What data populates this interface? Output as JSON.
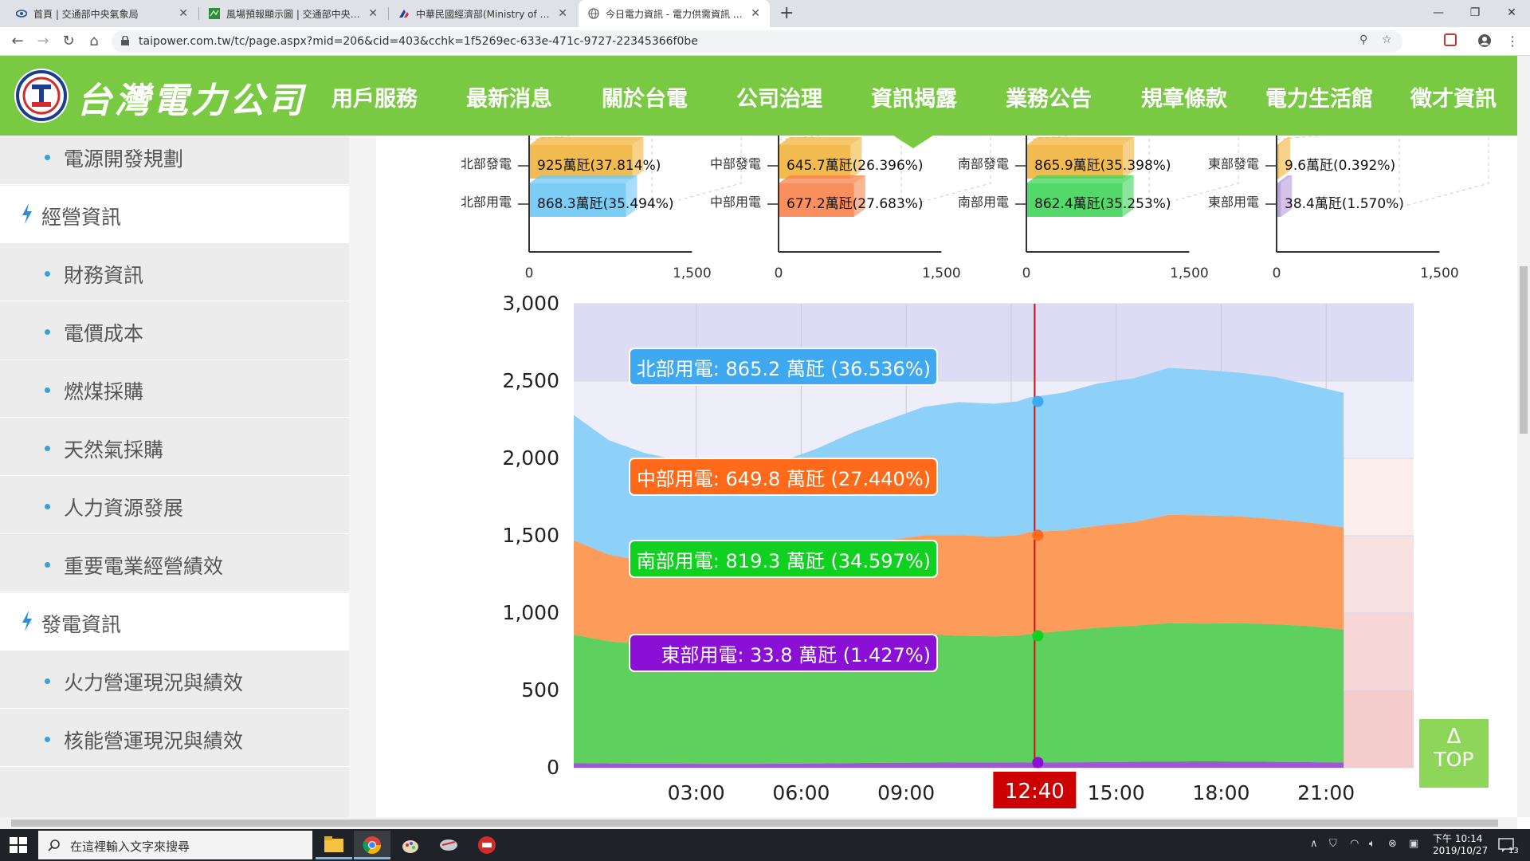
{
  "browser": {
    "tabs": [
      {
        "title": "首頁 | 交通部中央氣象局",
        "close": "✕"
      },
      {
        "title": "風場預報顯示圖 | 交通部中央氣象",
        "close": "✕"
      },
      {
        "title": "中華民國經濟部(Ministry of Eco",
        "close": "✕"
      },
      {
        "title": "今日電力資訊 - 電力供需資訊 - 資",
        "close": "✕"
      }
    ],
    "new_tab": "+",
    "url": "taipower.com.tw/tc/page.aspx?mid=206&cid=403&cchk=1f5269ec-633e-471c-9727-22345366f0be",
    "window_controls": [
      "—",
      "❐",
      "✕"
    ]
  },
  "site": {
    "logo_text": "台灣電力公司",
    "nav": [
      "用戶服務",
      "最新消息",
      "關於台電",
      "公司治理",
      "資訊揭露",
      "業務公告",
      "規章條款",
      "電力生活館",
      "徵才資訊"
    ],
    "active_nav": "資訊揭露"
  },
  "sidebar": {
    "items": [
      {
        "label": "電源開發規劃",
        "type": "sub"
      },
      {
        "label": "經營資訊",
        "type": "cat"
      },
      {
        "label": "財務資訊",
        "type": "sub"
      },
      {
        "label": "電價成本",
        "type": "sub"
      },
      {
        "label": "燃煤採購",
        "type": "sub"
      },
      {
        "label": "天然氣採購",
        "type": "sub"
      },
      {
        "label": "人力資源發展",
        "type": "sub"
      },
      {
        "label": "重要電業經營績效",
        "type": "sub"
      },
      {
        "label": "發電資訊",
        "type": "cat"
      },
      {
        "label": "火力營運現況與績效",
        "type": "sub"
      },
      {
        "label": "核能營運現況與績效",
        "type": "sub"
      }
    ]
  },
  "chart_data": [
    {
      "type": "bar",
      "orientation": "horizontal",
      "region_charts": [
        {
          "bars": [
            {
              "label": "北部發電",
              "value": 925,
              "text": "925萬瓩(37.814%)",
              "color": "#f0b43c"
            },
            {
              "label": "北部用電",
              "value": 868.3,
              "text": "868.3萬瓩(35.494%)",
              "color": "#6ec8f5"
            }
          ],
          "ticks": [
            "0",
            "1,500"
          ]
        },
        {
          "bars": [
            {
              "label": "中部發電",
              "value": 645.7,
              "text": "645.7萬瓩(26.396%)",
              "color": "#f0b43c"
            },
            {
              "label": "中部用電",
              "value": 677.2,
              "text": "677.2萬瓩(27.683%)",
              "color": "#f7834a"
            }
          ],
          "ticks": [
            "0",
            "1,500"
          ]
        },
        {
          "bars": [
            {
              "label": "南部發電",
              "value": 865.9,
              "text": "865.9萬瓩(35.398%)",
              "color": "#f0b43c"
            },
            {
              "label": "南部用電",
              "value": 862.4,
              "text": "862.4萬瓩(35.253%)",
              "color": "#40d45a"
            }
          ],
          "ticks": [
            "0",
            "1,500"
          ]
        },
        {
          "bars": [
            {
              "label": "東部發電",
              "value": 9.6,
              "text": "9.6萬瓩(0.392%)",
              "color": "#f0b43c"
            },
            {
              "label": "東部用電",
              "value": 38.4,
              "text": "38.4萬瓩(1.570%)",
              "color": "#b79ad8"
            }
          ],
          "ticks": [
            "0",
            "1,500"
          ]
        }
      ],
      "xlim": [
        0,
        2000
      ]
    },
    {
      "type": "area",
      "stacked": true,
      "ylim": [
        0,
        3000
      ],
      "y_ticks": [
        "0",
        "500",
        "1,000",
        "1,500",
        "2,000",
        "2,500",
        "3,000"
      ],
      "x_ticks": [
        {
          "hour": 3,
          "label": "03:00"
        },
        {
          "hour": 6,
          "label": "06:00"
        },
        {
          "hour": 9,
          "label": "09:00"
        },
        {
          "hour": 15,
          "label": "15:00"
        },
        {
          "hour": 18,
          "label": "18:00"
        },
        {
          "hour": 21,
          "label": "21:00"
        }
      ],
      "x_hours": [
        0,
        1,
        2,
        3,
        4,
        5,
        6,
        7,
        8,
        9,
        10,
        11,
        12,
        12.67,
        13,
        14,
        15,
        16,
        17,
        18,
        19,
        20,
        21,
        22
      ],
      "series": [
        {
          "key": "east",
          "color": "#9b59d6",
          "values": [
            30,
            28,
            27,
            26,
            25,
            25,
            26,
            28,
            30,
            32,
            33,
            34,
            34,
            33.8,
            34,
            35,
            36,
            38,
            40,
            42,
            40,
            38,
            36,
            34
          ]
        },
        {
          "key": "south",
          "color": "#5ed05e",
          "values": [
            830,
            790,
            770,
            760,
            750,
            760,
            780,
            800,
            820,
            820,
            830,
            820,
            815,
            819.3,
            830,
            850,
            870,
            880,
            895,
            890,
            895,
            890,
            880,
            860
          ]
        },
        {
          "key": "central",
          "color": "#fd9b5a",
          "values": [
            610,
            560,
            540,
            530,
            520,
            510,
            520,
            540,
            580,
            620,
            640,
            650,
            645,
            649.8,
            660,
            650,
            660,
            670,
            700,
            700,
            690,
            680,
            670,
            660
          ]
        },
        {
          "key": "north",
          "color": "#8dd0f8",
          "values": [
            810,
            740,
            700,
            670,
            650,
            640,
            660,
            700,
            740,
            780,
            830,
            860,
            860,
            865.2,
            870,
            890,
            920,
            930,
            950,
            940,
            930,
            920,
            890,
            870
          ]
        }
      ],
      "plan_bands": [
        {
          "from": 2500,
          "to": 3000,
          "color": "#dcdcf5"
        },
        {
          "from": 2000,
          "to": 2500,
          "color": "#eeeefa"
        },
        {
          "from": 1500,
          "to": 2000,
          "color": "#fbeeec"
        },
        {
          "from": 1000,
          "to": 1500,
          "color": "#f8e1e1"
        },
        {
          "from": 500,
          "to": 1000,
          "color": "#f6d6d6"
        },
        {
          "from": 0,
          "to": 500,
          "color": "#f4cccc"
        }
      ],
      "cursor": {
        "hour": 12.67,
        "label": "12:40"
      },
      "tooltips": [
        {
          "key": "north",
          "text": "北部用電: 865.2 萬瓩 (36.536%)",
          "bg": "#3ea8f0"
        },
        {
          "key": "central",
          "text": "中部用電: 649.8 萬瓩 (27.440%)",
          "bg": "#ff6a1a"
        },
        {
          "key": "south",
          "text": "南部用電: 819.3 萬瓩 (34.597%)",
          "bg": "#10d020"
        },
        {
          "key": "east",
          "text": "東部用電: 33.8 萬瓩 (1.427%)",
          "bg": "#8a10d6"
        }
      ]
    }
  ],
  "top_button": {
    "arrow": "Δ",
    "label": "TOP"
  },
  "taskbar": {
    "search_placeholder": "在這裡輸入文字來搜尋",
    "time": "下午 10:14",
    "date": "2019/10/27",
    "notifications": "13"
  }
}
